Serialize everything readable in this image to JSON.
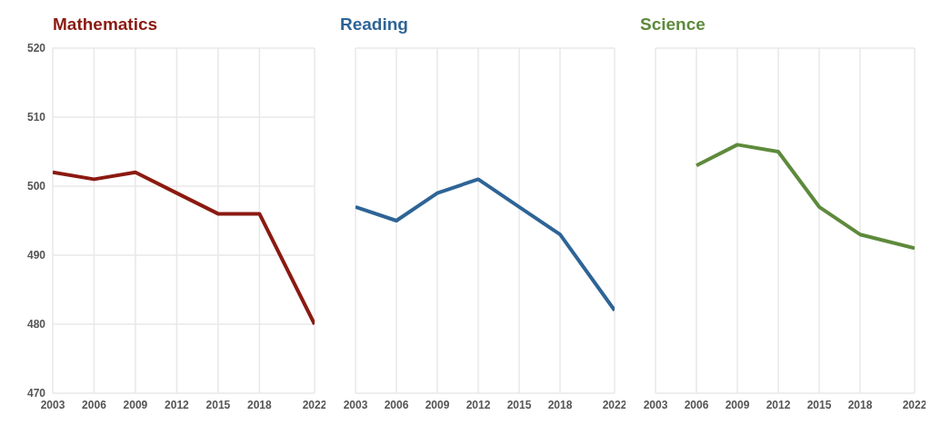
{
  "chart_data": [
    {
      "type": "line",
      "title": "Mathematics",
      "x": [
        2003,
        2006,
        2009,
        2012,
        2015,
        2018,
        2022
      ],
      "xlim": [
        2003,
        2022
      ],
      "xticks": [
        2003,
        2006,
        2009,
        2012,
        2015,
        2018,
        2022
      ],
      "ylim": [
        470,
        520
      ],
      "yticks": [
        470,
        480,
        490,
        500,
        510,
        520
      ],
      "grid": true,
      "legend": false,
      "marker": "none",
      "series": [
        {
          "color": "#8b1a12",
          "values": [
            502,
            501,
            502,
            499,
            496,
            496,
            480
          ]
        }
      ]
    },
    {
      "type": "line",
      "title": "Reading",
      "x": [
        2003,
        2006,
        2009,
        2012,
        2015,
        2018,
        2022
      ],
      "xlim": [
        2003,
        2022
      ],
      "xticks": [
        2003,
        2006,
        2009,
        2012,
        2015,
        2018,
        2022
      ],
      "ylim": [
        470,
        520
      ],
      "yticks": [
        470,
        480,
        490,
        500,
        510,
        520
      ],
      "grid": true,
      "legend": false,
      "marker": "none",
      "tick_labels": "x",
      "series": [
        {
          "color": "#2e6496",
          "values": [
            497,
            495,
            499,
            501,
            497,
            493,
            482
          ]
        }
      ]
    },
    {
      "type": "line",
      "title": "Science",
      "xlim": [
        2003,
        2022
      ],
      "xticks": [
        2003,
        2006,
        2009,
        2012,
        2015,
        2018,
        2022
      ],
      "ylim": [
        470,
        520
      ],
      "yticks": [
        470,
        480,
        490,
        500,
        510,
        520
      ],
      "grid": true,
      "legend": false,
      "marker": "none",
      "tick_labels": "x",
      "series": [
        {
          "color": "#5e8a3c",
          "x": [
            2006,
            2009,
            2012,
            2015,
            2018,
            2022
          ],
          "values": [
            503,
            506,
            505,
            497,
            493,
            491
          ]
        }
      ]
    }
  ]
}
